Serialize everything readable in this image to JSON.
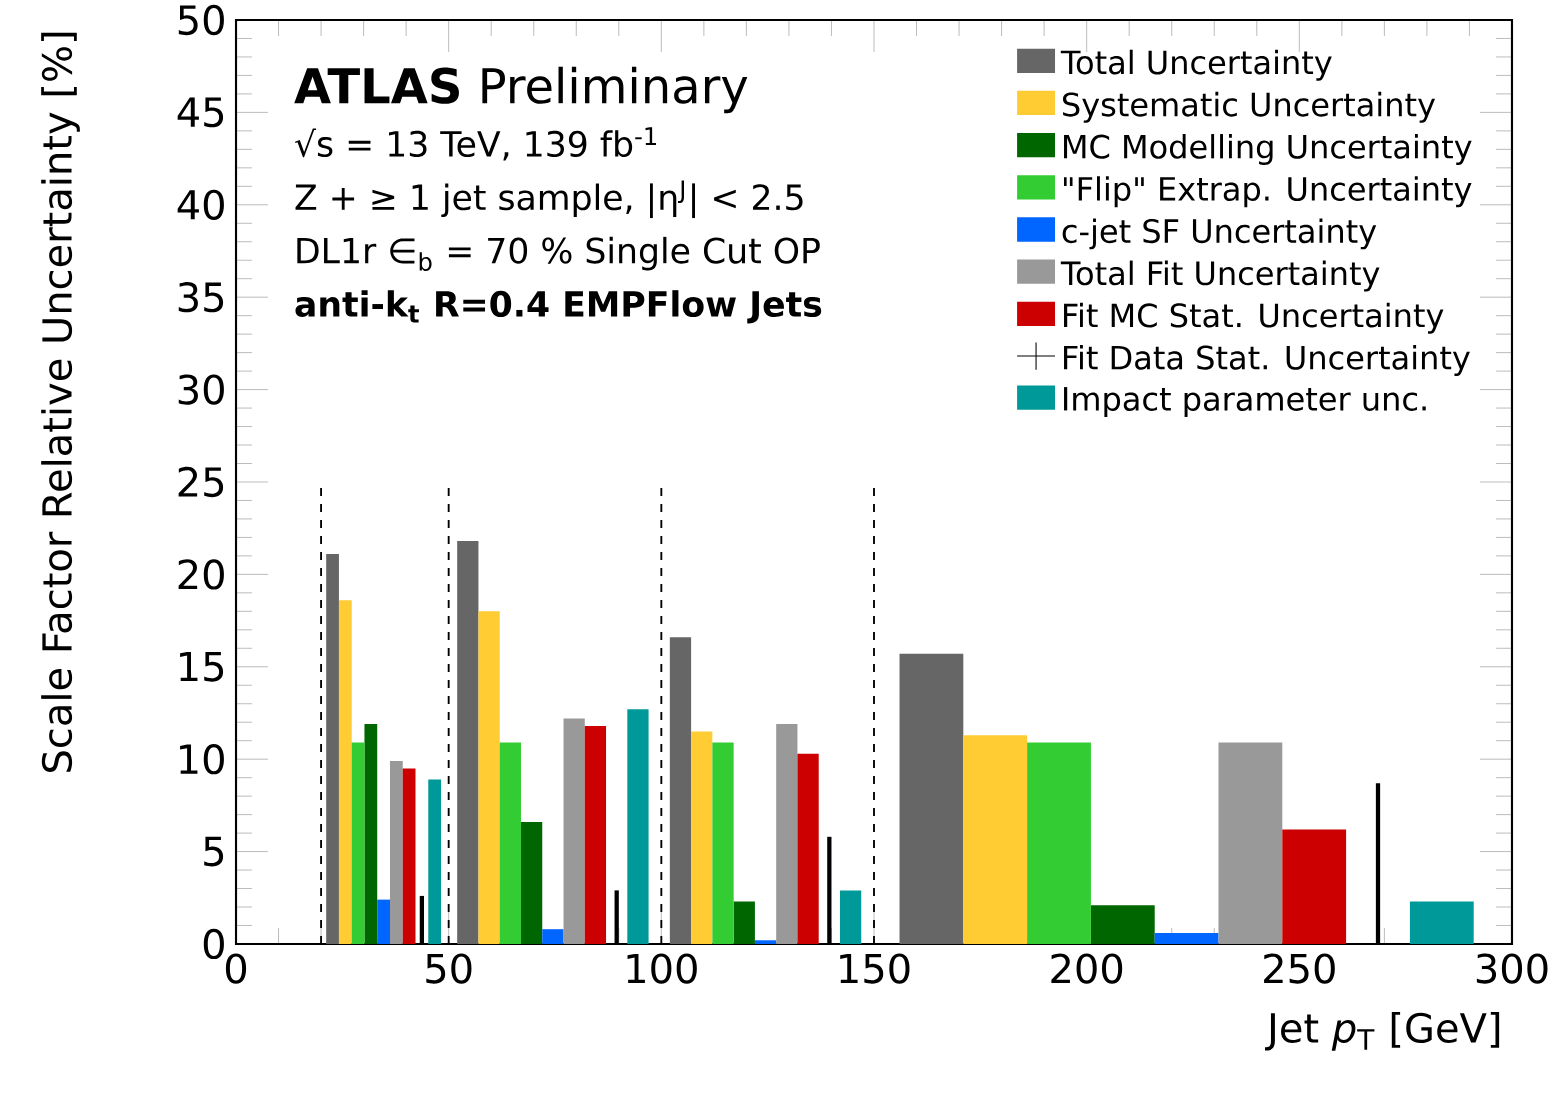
{
  "chart_data": {
    "type": "histogram",
    "xlabel": "Jet *p*$_{T}$ [GeV]",
    "ylabel": "Scale Factor Relative Uncertainty [%]",
    "xlim": [
      0,
      300
    ],
    "ylim": [
      0,
      50
    ],
    "xticks": [
      0,
      50,
      100,
      150,
      200,
      250,
      300
    ],
    "yticks": [
      0,
      5,
      10,
      15,
      20,
      25,
      30,
      35,
      40,
      45,
      50
    ],
    "legend": "top right",
    "annotations": [
      "**ATLAS** Preliminary",
      "√s = 13 TeV, 139 fb$^{-1}$",
      "Z + ≥ 1 jet sample, |η$^{J}$| < 2.5",
      "DL1r ∈$_{b}$ =  70 % Single Cut OP",
      "**anti-k$_{t}$ R=0.4 EMPFlow Jets**"
    ],
    "ref_lines": [
      {
        "axis": "x",
        "value": 20,
        "line_style": "dashed"
      },
      {
        "axis": "x",
        "value": 50,
        "line_style": "dashed"
      },
      {
        "axis": "x",
        "value": 100,
        "line_style": "dashed"
      },
      {
        "axis": "x",
        "value": 150,
        "line_style": "dashed"
      }
    ],
    "series": [
      {
        "name": "Total Uncertainty",
        "color": "#666666",
        "bins": [
          21.2,
          24.2,
          52,
          57,
          102,
          107,
          156,
          171
        ],
        "values": [
          21.1,
          null,
          21.8,
          null,
          16.6,
          null,
          15.7
        ]
      },
      {
        "name": "Systematic Uncertainty",
        "color": "#ffcc33",
        "bins": [
          24.2,
          27.2,
          57,
          62,
          107,
          112,
          171,
          186
        ],
        "values": [
          18.6,
          null,
          18.0,
          null,
          11.5,
          null,
          11.3
        ]
      },
      {
        "name": "MC Modelling Uncertainty",
        "color": "#006600",
        "bins": [
          30.2,
          33.2,
          67,
          72,
          117,
          122,
          201,
          216
        ],
        "values": [
          11.9,
          null,
          6.6,
          null,
          2.3,
          null,
          2.1
        ]
      },
      {
        "name": "\"Flip\" Extrap. Uncertainty",
        "color": "#33cc33",
        "bins": [
          27.2,
          30.2,
          62,
          67,
          112,
          117,
          186,
          201
        ],
        "values": [
          10.9,
          null,
          10.9,
          null,
          10.9,
          null,
          10.9
        ]
      },
      {
        "name": "c-jet SF Uncertainty",
        "color": "#0066ff",
        "bins": [
          33.2,
          36.2,
          72,
          77,
          122,
          127,
          216,
          231
        ],
        "values": [
          2.4,
          null,
          0.8,
          null,
          0.2,
          null,
          0.6
        ]
      },
      {
        "name": "Total Fit Uncertainty",
        "color": "#999999",
        "bins": [
          36.2,
          39.2,
          77,
          82,
          127,
          132,
          231,
          246
        ],
        "values": [
          9.9,
          null,
          12.2,
          null,
          11.9,
          null,
          10.9
        ]
      },
      {
        "name": "Fit MC Stat. Uncertainty",
        "color": "#cc0000",
        "bins": [
          39.2,
          42.2,
          82,
          87,
          132,
          137,
          246,
          261
        ],
        "values": [
          9.5,
          null,
          11.8,
          null,
          10.3,
          null,
          6.2
        ]
      },
      {
        "name": "Fit Data Stat. Uncertainty",
        "color": "#000000",
        "type": "bar",
        "x": [
          43.7,
          89.5,
          139.5,
          268.5
        ],
        "values": [
          2.6,
          2.9,
          5.8,
          8.7
        ]
      },
      {
        "name": "Impact parameter unc.",
        "color": "#009999",
        "bins": [
          45.2,
          48.2,
          92,
          97,
          142,
          147,
          276,
          291
        ],
        "values": [
          8.9,
          null,
          12.7,
          null,
          2.9,
          null,
          2.3
        ]
      }
    ]
  }
}
